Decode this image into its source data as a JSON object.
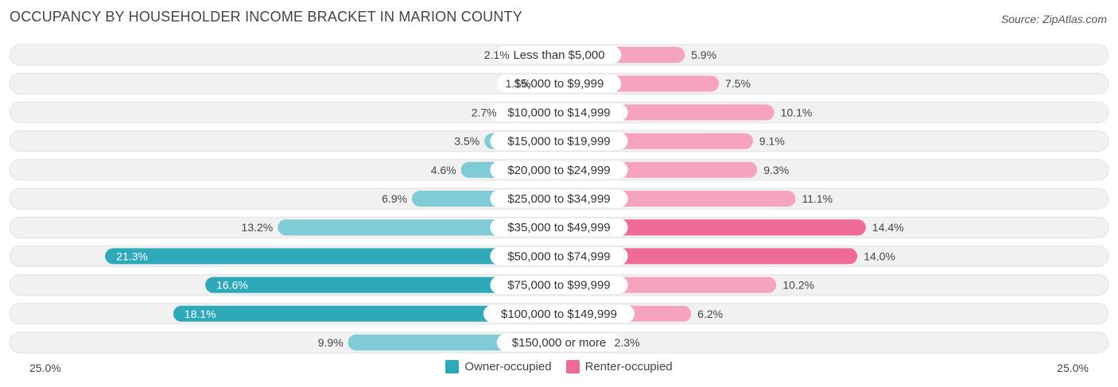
{
  "header": {
    "title": "OCCUPANCY BY HOUSEHOLDER INCOME BRACKET IN MARION COUNTY",
    "source": "Source: ZipAtlas.com"
  },
  "axis": {
    "left_label": "25.0%",
    "right_label": "25.0%"
  },
  "legend": {
    "owner": "Owner-occupied",
    "renter": "Renter-occupied"
  },
  "colors": {
    "owner_dark": "#2ea9b9",
    "owner_light": "#7fcbd6",
    "renter_dark": "#f06a96",
    "renter_light": "#f6a3c0",
    "row_bg": "#efefef"
  },
  "chart_data": {
    "type": "bar",
    "orientation": "horizontal-diverging",
    "title": "OCCUPANCY BY HOUSEHOLDER INCOME BRACKET IN MARION COUNTY",
    "xlim": [
      -25,
      25
    ],
    "categories": [
      "Less than $5,000",
      "$5,000 to $9,999",
      "$10,000 to $14,999",
      "$15,000 to $19,999",
      "$20,000 to $24,999",
      "$25,000 to $34,999",
      "$35,000 to $49,999",
      "$50,000 to $74,999",
      "$75,000 to $99,999",
      "$100,000 to $149,999",
      "$150,000 or more"
    ],
    "series": [
      {
        "name": "Owner-occupied",
        "values": [
          2.1,
          1.1,
          2.7,
          3.5,
          4.6,
          6.9,
          13.2,
          21.3,
          16.6,
          18.1,
          9.9
        ],
        "labels": [
          "2.1%",
          "1.1%",
          "2.7%",
          "3.5%",
          "4.6%",
          "6.9%",
          "13.2%",
          "21.3%",
          "16.6%",
          "18.1%",
          "9.9%"
        ]
      },
      {
        "name": "Renter-occupied",
        "values": [
          5.9,
          7.5,
          10.1,
          9.1,
          9.3,
          11.1,
          14.4,
          14.0,
          10.2,
          6.2,
          2.3
        ],
        "labels": [
          "5.9%",
          "7.5%",
          "10.1%",
          "9.1%",
          "9.3%",
          "11.1%",
          "14.4%",
          "14.0%",
          "10.2%",
          "6.2%",
          "2.3%"
        ]
      }
    ]
  }
}
